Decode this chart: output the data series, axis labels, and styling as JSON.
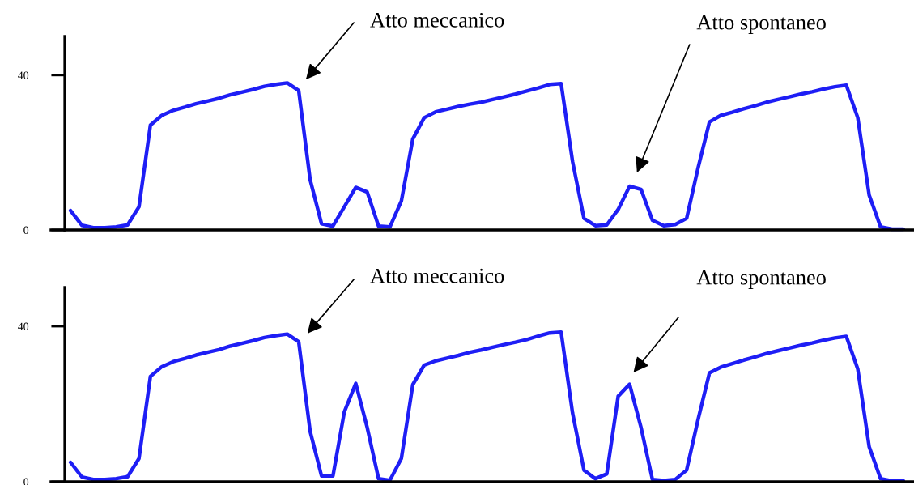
{
  "chart_data": [
    {
      "type": "line",
      "ylim": [
        0,
        50
      ],
      "yticks": [
        0,
        40
      ],
      "tick_labels": "y",
      "line_style": "solid",
      "annotations": [
        "Atto meccanico",
        "Atto spontaneo"
      ],
      "categories": [
        null,
        null,
        null,
        null,
        null,
        null,
        null,
        null,
        null,
        null,
        null,
        null,
        null,
        null,
        null,
        null,
        null,
        null,
        null,
        null,
        null,
        null,
        null,
        null,
        null,
        null,
        null,
        null,
        null,
        null,
        null,
        null,
        null,
        null,
        null,
        null,
        null,
        null,
        null,
        null,
        null,
        null,
        null,
        null,
        null,
        null,
        null,
        null,
        null,
        null,
        null,
        null,
        null,
        null,
        null,
        null,
        null,
        null,
        null,
        null,
        null,
        null,
        null,
        null,
        null,
        null,
        null,
        null,
        null,
        null,
        null,
        null,
        null,
        null
      ],
      "series": [
        {
          "color": "#1e1ef5",
          "values": [
            5.0,
            1.2,
            0.6,
            0.6,
            0.8,
            1.3,
            6.0,
            27.1,
            29.6,
            30.9,
            31.7,
            32.6,
            33.3,
            34.0,
            34.9,
            35.6,
            36.3,
            37.1,
            37.6,
            38.0,
            36.0,
            13,
            1.6,
            1.0,
            6,
            11.0,
            9.8,
            1.0,
            0.8,
            7.5,
            23.5,
            29.0,
            30.5,
            31.2,
            31.9,
            32.5,
            33.0,
            33.7,
            34.4,
            35.1,
            35.9,
            36.7,
            37.6,
            37.8,
            17.7,
            3.0,
            1.1,
            1.3,
            5.3,
            11.3,
            10.5,
            2.5,
            1.1,
            1.4,
            3,
            16,
            27.9,
            29.6,
            30.4,
            31.3,
            32.1,
            33.0,
            33.7,
            34.4,
            35.1,
            35.7,
            36.4,
            37.0,
            37.4,
            29,
            9,
            0.8,
            0.2,
            0.2
          ]
        }
      ]
    },
    {
      "type": "line",
      "ylim": [
        0,
        50
      ],
      "yticks": [
        0,
        40
      ],
      "tick_labels": "y",
      "line_style": "solid",
      "annotations": [
        "Atto meccanico",
        "Atto spontaneo"
      ],
      "categories": [
        null,
        null,
        null,
        null,
        null,
        null,
        null,
        null,
        null,
        null,
        null,
        null,
        null,
        null,
        null,
        null,
        null,
        null,
        null,
        null,
        null,
        null,
        null,
        null,
        null,
        null,
        null,
        null,
        null,
        null,
        null,
        null,
        null,
        null,
        null,
        null,
        null,
        null,
        null,
        null,
        null,
        null,
        null,
        null,
        null,
        null,
        null,
        null,
        null,
        null,
        null,
        null,
        null,
        null,
        null,
        null,
        null,
        null,
        null,
        null,
        null,
        null,
        null,
        null,
        null,
        null,
        null,
        null,
        null,
        null,
        null,
        null,
        null,
        null
      ],
      "series": [
        {
          "color": "#1e1ef5",
          "values": [
            5.0,
            1.2,
            0.6,
            0.6,
            0.8,
            1.3,
            6,
            27.1,
            29.6,
            30.9,
            31.7,
            32.6,
            33.3,
            34.0,
            34.9,
            35.6,
            36.3,
            37.1,
            37.6,
            38.0,
            36.0,
            13,
            1.5,
            1.5,
            18,
            25.3,
            14,
            0.8,
            0.4,
            6,
            25,
            30,
            31.1,
            31.8,
            32.5,
            33.3,
            33.9,
            34.6,
            35.3,
            35.9,
            36.6,
            37.5,
            38.3,
            38.5,
            17.7,
            3,
            0.8,
            2,
            22,
            25.1,
            14,
            0.6,
            0.3,
            0.6,
            3,
            16,
            28,
            29.5,
            30.4,
            31.3,
            32.1,
            33,
            33.7,
            34.4,
            35.1,
            35.7,
            36.4,
            37.0,
            37.4,
            29,
            9,
            0.8,
            0.2,
            0.2
          ]
        }
      ]
    }
  ]
}
